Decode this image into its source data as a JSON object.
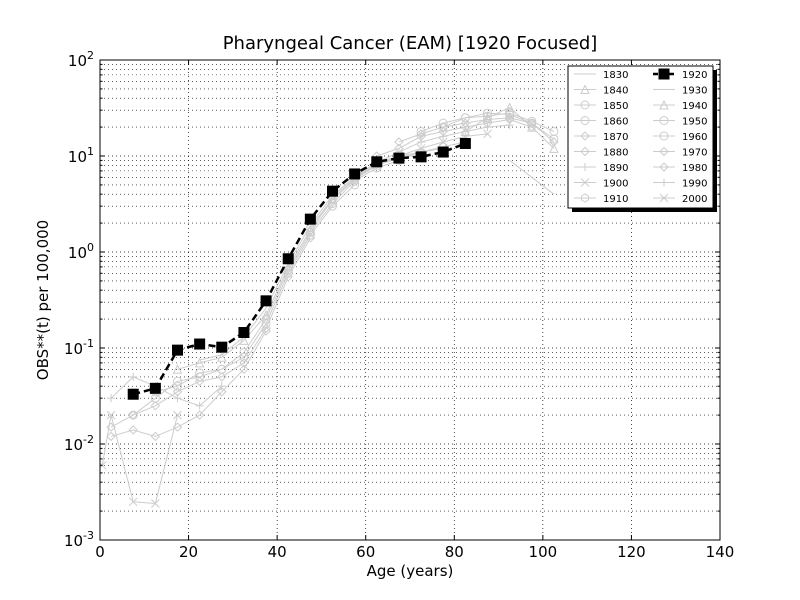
{
  "chart_data": {
    "type": "line",
    "title": "Pharyngeal Cancer (EAM) [1920 Focused]",
    "xlabel": "Age (years)",
    "ylabel": "OBS**(t) per 100,000",
    "xlim": [
      0,
      140
    ],
    "ylim": [
      0.001,
      100
    ],
    "yscale": "log",
    "grid": true,
    "x_ticks": [
      "0",
      "20",
      "40",
      "60",
      "80",
      "100",
      "120",
      "140"
    ],
    "y_ticks": [
      "10-3",
      "10-2",
      "10-1",
      "100",
      "101",
      "102"
    ],
    "legend_placement": "top-right",
    "highlight_series": "1920",
    "colors": {
      "highlight": "#000000",
      "background_series": "#cccccc",
      "grid": "#000000"
    },
    "series": [
      {
        "name": "1830",
        "marker": "none",
        "x": [
          92.5,
          97.5,
          102.5
        ],
        "y": [
          9.0,
          6.0,
          4.0
        ]
      },
      {
        "name": "1840",
        "marker": "triangle-up",
        "x": [
          82.5,
          87.5,
          92.5,
          97.5,
          102.5
        ],
        "y": [
          18,
          25,
          32,
          20,
          12
        ]
      },
      {
        "name": "1850",
        "marker": "circle",
        "x": [
          77.5,
          82.5,
          87.5,
          92.5,
          97.5,
          102.5
        ],
        "y": [
          20,
          25,
          28,
          27,
          22,
          15
        ]
      },
      {
        "name": "1860",
        "marker": "circle",
        "x": [
          72.5,
          77.5,
          82.5,
          87.5,
          92.5,
          97.5,
          102.5
        ],
        "y": [
          18,
          22,
          25,
          26,
          28,
          23,
          18
        ]
      },
      {
        "name": "1870",
        "marker": "diamond",
        "x": [
          67.5,
          72.5,
          77.5,
          82.5,
          87.5,
          92.5,
          97.5,
          102.5
        ],
        "y": [
          14,
          17,
          20,
          22,
          24,
          25,
          22,
          14
        ]
      },
      {
        "name": "1880",
        "marker": "diamond",
        "x": [
          62.5,
          67.5,
          72.5,
          77.5,
          82.5,
          87.5,
          92.5,
          97.5
        ],
        "y": [
          10,
          12,
          16,
          18,
          20,
          22,
          24,
          20
        ]
      },
      {
        "name": "1890",
        "marker": "plus",
        "x": [
          57.5,
          62.5,
          67.5,
          72.5,
          77.5,
          82.5,
          87.5,
          92.5
        ],
        "y": [
          6.2,
          8.5,
          11,
          14,
          16,
          18,
          20,
          21
        ]
      },
      {
        "name": "1900",
        "marker": "x",
        "x": [
          52.5,
          57.5,
          62.5,
          67.5,
          72.5,
          77.5,
          82.5,
          87.5
        ],
        "y": [
          3.8,
          6.0,
          8.0,
          10,
          12,
          14,
          16,
          17
        ]
      },
      {
        "name": "1910",
        "marker": "hexagon",
        "x": [
          47.5,
          52.5,
          57.5,
          62.5,
          67.5,
          72.5,
          77.5,
          82.5
        ],
        "y": [
          1.8,
          3.6,
          5.8,
          8.2,
          9.5,
          11,
          12.5,
          14
        ]
      },
      {
        "name": "1920",
        "marker": "square",
        "x": [
          7.5,
          12.5,
          17.5,
          22.5,
          27.5,
          32.5,
          37.5,
          42.5,
          47.5,
          52.5,
          57.5,
          62.5,
          67.5,
          72.5,
          77.5,
          82.5
        ],
        "y": [
          0.033,
          0.038,
          0.095,
          0.11,
          0.102,
          0.145,
          0.31,
          0.85,
          2.2,
          4.3,
          6.5,
          8.7,
          9.5,
          9.8,
          11,
          13.5
        ]
      },
      {
        "name": "1930",
        "marker": "none",
        "x": [
          22.5,
          27.5,
          32.5,
          37.5,
          42.5,
          47.5,
          52.5,
          57.5,
          62.5,
          67.5,
          72.5,
          77.5
        ],
        "y": [
          0.075,
          0.085,
          0.13,
          0.26,
          0.75,
          1.9,
          3.9,
          6.0,
          8.5,
          10,
          11,
          12
        ]
      },
      {
        "name": "1940",
        "marker": "triangle-up",
        "x": [
          17.5,
          22.5,
          27.5,
          32.5,
          37.5,
          42.5,
          47.5,
          52.5,
          57.5,
          62.5,
          67.5,
          72.5
        ],
        "y": [
          0.06,
          0.07,
          0.08,
          0.12,
          0.22,
          0.7,
          1.7,
          3.5,
          5.7,
          8.0,
          9.5,
          10.5
        ]
      },
      {
        "name": "1950",
        "marker": "circle",
        "x": [
          12.5,
          17.5,
          22.5,
          27.5,
          32.5,
          37.5,
          42.5,
          47.5,
          52.5,
          57.5,
          62.5,
          67.5
        ],
        "y": [
          0.035,
          0.04,
          0.055,
          0.06,
          0.09,
          0.2,
          0.65,
          1.6,
          3.2,
          5.5,
          7.5,
          9.0
        ]
      },
      {
        "name": "1960",
        "marker": "circle",
        "x": [
          7.5,
          12.5,
          17.5,
          22.5,
          27.5,
          32.5,
          37.5,
          42.5,
          47.5,
          52.5,
          57.5
        ],
        "y": [
          0.02,
          0.03,
          0.045,
          0.05,
          0.06,
          0.08,
          0.18,
          0.6,
          1.5,
          3.0,
          5.0
        ]
      },
      {
        "name": "1970",
        "marker": "diamond",
        "x": [
          2.5,
          7.5,
          12.5,
          17.5,
          22.5,
          27.5,
          32.5,
          37.5,
          42.5,
          47.5
        ],
        "y": [
          0.015,
          0.02,
          0.025,
          0.035,
          0.045,
          0.05,
          0.07,
          0.16,
          0.55,
          1.4
        ]
      },
      {
        "name": "1980",
        "marker": "diamond",
        "x": [
          2.5,
          7.5,
          12.5,
          17.5,
          22.5,
          27.5,
          32.5,
          37.5
        ],
        "y": [
          0.012,
          0.014,
          0.012,
          0.015,
          0.02,
          0.035,
          0.06,
          0.15
        ]
      },
      {
        "name": "1990",
        "marker": "plus",
        "x": [
          2.5,
          7.5,
          12.5,
          17.5,
          22.5,
          27.5
        ],
        "y": [
          0.03,
          0.05,
          0.04,
          0.03,
          0.025,
          0.04
        ]
      },
      {
        "name": "2000",
        "marker": "x",
        "x": [
          0.5,
          2.5,
          7.5,
          12.5,
          17.5
        ],
        "y": [
          0.006,
          0.02,
          0.0025,
          0.0024,
          0.02
        ]
      }
    ]
  }
}
